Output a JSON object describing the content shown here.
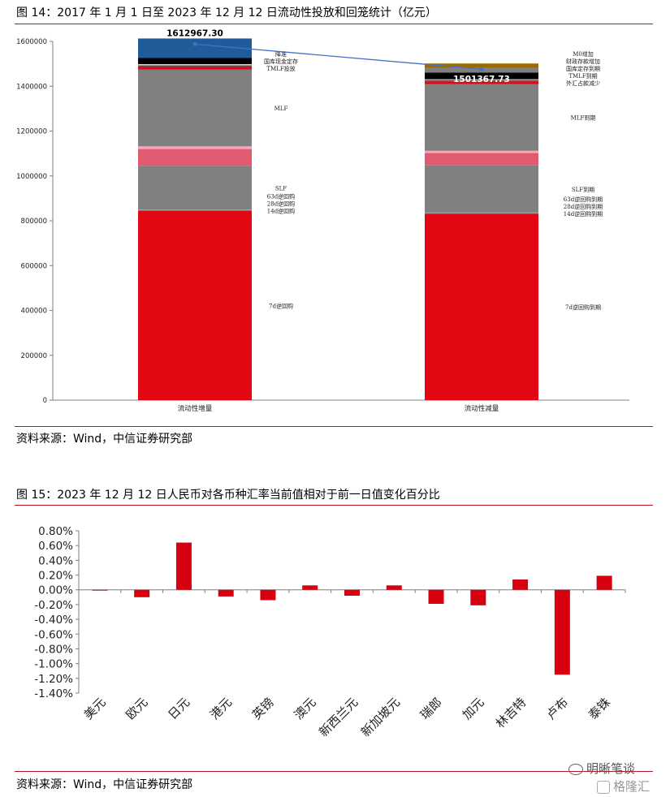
{
  "figure14": {
    "title": "图 14：2017 年 1 月 1 日至 2023 年 12 月 12 日流动性投放和回笼统计（亿元）",
    "source": "资料来源：Wind，中信证券研究部",
    "chart_data": {
      "type": "bar",
      "stacked": true,
      "categories": [
        "流动性增量",
        "流动性减量"
      ],
      "ylim": [
        0,
        1600000
      ],
      "yticks": [
        "0",
        "200000",
        "400000",
        "600000",
        "800000",
        "1000000",
        "1200000",
        "1400000",
        "1600000"
      ],
      "totals": [
        1612967.3,
        1501367.73
      ],
      "total_labels": [
        "1612967.30",
        "1501367.73"
      ],
      "stacks": [
        {
          "segments": [
            {
              "label": "7d逆回购",
              "value": 845000,
              "color": "#e30613"
            },
            {
              "label": "14d逆回购",
              "value": 0,
              "color": "#e30613"
            },
            {
              "label": "28d逆回购",
              "value": 3000,
              "color": "#8c8c8c"
            },
            {
              "label": "63d逆回购",
              "value": 2000,
              "color": "#8c8c8c"
            },
            {
              "label": "SLF",
              "value": 195000,
              "color": "#808080"
            },
            {
              "label": "",
              "value": 75000,
              "color": "#e05a70"
            },
            {
              "label": "",
              "value": 12000,
              "color": "#f4a7b4"
            },
            {
              "label": "MLF",
              "value": 342000,
              "color": "#808080"
            },
            {
              "label": "TMLF投放",
              "value": 12000,
              "color": "#e30613"
            },
            {
              "label": "国库现金定存",
              "value": 8000,
              "color": "#555555"
            },
            {
              "label": "",
              "value": 4000,
              "color": "#ffffff"
            },
            {
              "label": "降准",
              "value": 29000,
              "color": "#000000"
            },
            {
              "label": "",
              "value": 85967.3,
              "color": "#1f5c99"
            }
          ]
        },
        {
          "segments": [
            {
              "label": "7d逆回购到期",
              "value": 832000,
              "color": "#e30613"
            },
            {
              "label": "14d逆回购到期",
              "value": 0,
              "color": "#e30613"
            },
            {
              "label": "28d逆回购到期",
              "value": 3000,
              "color": "#8c8c8c"
            },
            {
              "label": "63d逆回购到期",
              "value": 2000,
              "color": "#8c8c8c"
            },
            {
              "label": "SLF到期",
              "value": 210000,
              "color": "#808080"
            },
            {
              "label": "",
              "value": 55000,
              "color": "#e05a70"
            },
            {
              "label": "",
              "value": 10000,
              "color": "#f4a7b4"
            },
            {
              "label": "MLF到期",
              "value": 298000,
              "color": "#808080"
            },
            {
              "label": "外汇占款减少",
              "value": 12000,
              "color": "#e30613"
            },
            {
              "label": "TMLF到期",
              "value": 6000,
              "color": "#555555"
            },
            {
              "label": "国库定存到期",
              "value": 3000,
              "color": "#ffffff"
            },
            {
              "label": "财政存款增加",
              "value": 30000,
              "color": "#000000"
            },
            {
              "label": "",
              "value": 20000,
              "color": "#7f7f7f"
            },
            {
              "label": "M0增加",
              "value": 20367.73,
              "color": "#9c6b00"
            }
          ]
        }
      ],
      "trend_line_color": "#4472c4"
    }
  },
  "figure15": {
    "title": "图 15：2023 年 12 月 12 日人民币对各币种汇率当前值相对于前一日值变化百分比",
    "source": "资料来源：Wind，中信证券研究部",
    "chart_data": {
      "type": "bar",
      "categories": [
        "美元",
        "欧元",
        "日元",
        "港元",
        "英镑",
        "澳元",
        "新西兰元",
        "新加坡元",
        "瑞郎",
        "加元",
        "林吉特",
        "卢布",
        "泰铢"
      ],
      "values": [
        -0.01,
        -0.1,
        0.64,
        -0.09,
        -0.14,
        0.06,
        -0.08,
        0.06,
        -0.19,
        -0.21,
        0.14,
        -1.15,
        0.19
      ],
      "ylim": [
        -1.4,
        0.8
      ],
      "yticks": [
        "0.80%",
        "0.60%",
        "0.40%",
        "0.20%",
        "0.00%",
        "-0.20%",
        "-0.40%",
        "-0.60%",
        "-0.80%",
        "-1.00%",
        "-1.20%",
        "-1.40%"
      ],
      "bar_color": "#d7000f"
    }
  },
  "watermark": {
    "account": "明晰笔谈",
    "brand": "格隆汇"
  },
  "colors": {
    "rule": "#c0121b"
  }
}
